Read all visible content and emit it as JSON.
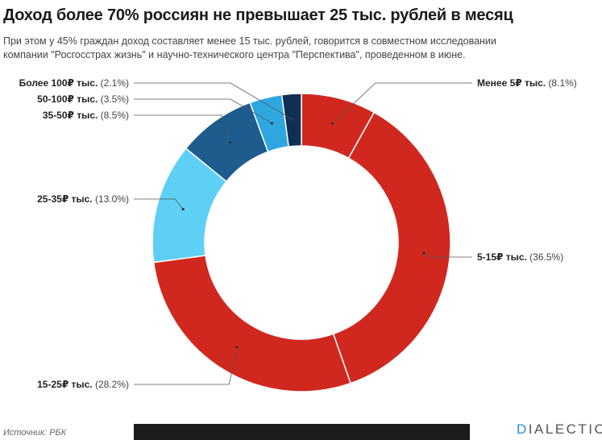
{
  "header": {
    "title": "Доход более 70% россиян не превышает 25 тыс. рублей в месяц",
    "subtitle_line1": "При этом у 45% граждан доход составляет менее 15 тыс. рублей, говорится в совместном исследовании",
    "subtitle_line2": "компании \"Росгосстрах жизнь\" и научно-технического центра \"Перспектива\", проведенном в июне."
  },
  "footer": {
    "source": "Источник: РБК",
    "logo_first": "D",
    "logo_rest": "IALECTIC"
  },
  "colors": {
    "red": "#d0281f",
    "light_blue": "#5fd0f5",
    "mid_blue": "#1d5c8d",
    "blue_2": "#2ea7e0",
    "dark_navy": "#0f2f55"
  },
  "chart_data": {
    "type": "pie",
    "style": "donut",
    "start": "top",
    "direction": "clockwise",
    "slices": [
      {
        "name": "Менее 5₽ тыс.",
        "value_label": "(8.1%)",
        "value": 8.1,
        "color": "#d0281f"
      },
      {
        "name": "5-15₽ тыс.",
        "value_label": "(36.5%)",
        "value": 36.5,
        "color": "#d0281f"
      },
      {
        "name": "15-25₽ тыс.",
        "value_label": "(28.2%)",
        "value": 28.2,
        "color": "#d0281f"
      },
      {
        "name": "25-35₽ тыс.",
        "value_label": "(13.0%)",
        "value": 13.0,
        "color": "#5fd0f5"
      },
      {
        "name": "35-50₽ тыс.",
        "value_label": "(8.5%)",
        "value": 8.5,
        "color": "#1d5c8d"
      },
      {
        "name": "50-100₽ тыс.",
        "value_label": "(3.5%)",
        "value": 3.5,
        "color": "#2ea7e0"
      },
      {
        "name": "Более 100₽ тыс.",
        "value_label": "(2.1%)",
        "value": 2.1,
        "color": "#0f2f55"
      }
    ]
  }
}
